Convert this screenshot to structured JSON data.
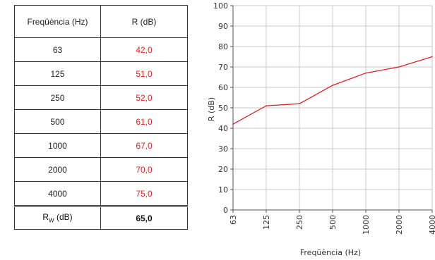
{
  "table": {
    "header": {
      "freq": "Freqüència (Hz)",
      "r": "R (dB)"
    },
    "rows": [
      {
        "freq": "63",
        "r": "42,0"
      },
      {
        "freq": "125",
        "r": "51,0"
      },
      {
        "freq": "250",
        "r": "52,0"
      },
      {
        "freq": "500",
        "r": "61,0"
      },
      {
        "freq": "1000",
        "r": "67,0"
      },
      {
        "freq": "2000",
        "r": "70,0"
      },
      {
        "freq": "4000",
        "r": "75,0"
      }
    ],
    "rw": {
      "label_main": "R",
      "label_sub": "W",
      "label_unit": " (dB)",
      "value": "65,0"
    }
  },
  "chart_data": {
    "type": "line",
    "categories": [
      "63",
      "125",
      "250",
      "500",
      "1000",
      "2000",
      "4000"
    ],
    "series": [
      {
        "values": [
          42,
          51,
          52,
          61,
          67,
          70,
          75
        ],
        "color": "#e02020"
      }
    ],
    "xlabel": "Freqüència (Hz)",
    "ylabel": "R (dB)",
    "ylim": [
      0,
      100
    ],
    "yticks": [
      0,
      10,
      20,
      30,
      40,
      50,
      60,
      70,
      80,
      90,
      100
    ],
    "grid": true
  }
}
